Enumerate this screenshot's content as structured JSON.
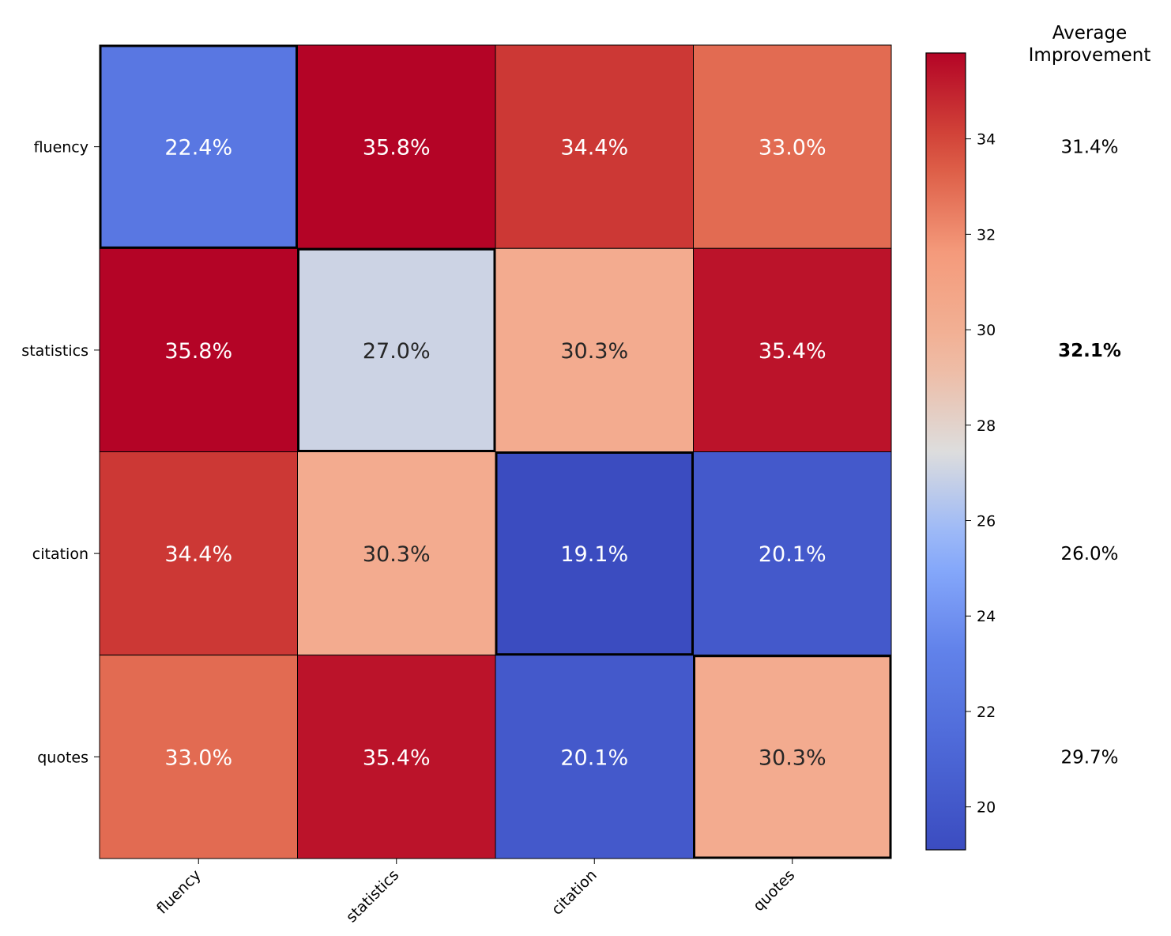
{
  "chart_data": {
    "type": "heatmap",
    "title": "",
    "xlabel": "",
    "ylabel": "",
    "x_categories": [
      "fluency",
      "statistics",
      "citation",
      "quotes"
    ],
    "y_categories": [
      "fluency",
      "statistics",
      "citation",
      "quotes"
    ],
    "values": [
      [
        22.4,
        35.8,
        34.4,
        33.0
      ],
      [
        35.8,
        27.0,
        30.3,
        35.4
      ],
      [
        34.4,
        30.3,
        19.1,
        20.1
      ],
      [
        33.0,
        35.4,
        20.1,
        30.3
      ]
    ],
    "cell_labels": [
      [
        "22.4%",
        "35.8%",
        "34.4%",
        "33.0%"
      ],
      [
        "35.8%",
        "27.0%",
        "30.3%",
        "35.4%"
      ],
      [
        "34.4%",
        "30.3%",
        "19.1%",
        "20.1%"
      ],
      [
        "33.0%",
        "35.4%",
        "20.1%",
        "30.3%"
      ]
    ],
    "colormap": "coolwarm",
    "color_range": [
      19.1,
      35.8
    ],
    "colorbar_ticks": [
      20,
      22,
      24,
      26,
      28,
      30,
      32,
      34
    ],
    "diagonal_highlighted": true,
    "average_column": {
      "title_line1": "Average",
      "title_line2": "Improvement",
      "values": [
        "31.4%",
        "32.1%",
        "26.0%",
        "29.7%"
      ],
      "bold_index": 1
    }
  }
}
